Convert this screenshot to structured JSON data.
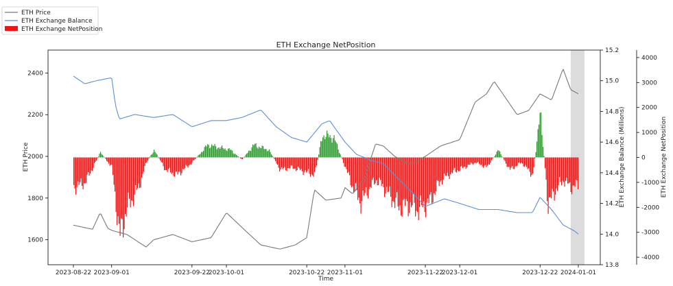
{
  "chart_data": {
    "type": "line",
    "title": "ETH Exchange NetPosition",
    "xlabel": "Time",
    "x_ticks": [
      "2023-08-22",
      "2023-09-01",
      "2023-09-22",
      "2023-10-01",
      "2023-10-22",
      "2023-11-01",
      "2023-11-22",
      "2023-12-01",
      "2023-12-22",
      "2024-01-01"
    ],
    "x_range": [
      "2023-08-22",
      "2024-01-01"
    ],
    "axes": {
      "left": {
        "label": "ETH Price",
        "ylim": [
          1480,
          2510
        ],
        "ticks": [
          1600,
          1800,
          2000,
          2200,
          2400
        ]
      },
      "right1": {
        "label": "ETH Exchange Balance (Millions)",
        "ylim": [
          13.8,
          15.2
        ],
        "ticks": [
          "13.8",
          "14.0",
          "14.2",
          "14.4",
          "14.6",
          "14.8",
          "15.0",
          "15.2"
        ]
      },
      "right2": {
        "label": "ETH Exchange NetPosition",
        "ylim": [
          -4300,
          4300
        ],
        "ticks": [
          -4000,
          -3000,
          -2000,
          -1000,
          0,
          1000,
          2000,
          3000,
          4000
        ]
      }
    },
    "legend": {
      "position": "top-left",
      "entries": [
        "ETH Price",
        "ETH Exchange Balance",
        "ETH Exchange NetPosition"
      ]
    },
    "highlight_band": [
      "2023-12-30",
      "2024-01-01"
    ],
    "colors": {
      "price": "#777777",
      "balance": "#5b8fd6",
      "net_positive": "#2a9a2a",
      "net_negative": "#f01414",
      "band": "#dcdcdc"
    },
    "series": [
      {
        "name": "ETH Price",
        "axis": "left",
        "x": [
          "2023-08-22",
          "2023-08-27",
          "2023-08-29",
          "2023-08-31",
          "2023-09-01",
          "2023-09-05",
          "2023-09-10",
          "2023-09-12",
          "2023-09-17",
          "2023-09-22",
          "2023-09-27",
          "2023-10-01",
          "2023-10-05",
          "2023-10-10",
          "2023-10-15",
          "2023-10-19",
          "2023-10-22",
          "2023-10-24",
          "2023-10-27",
          "2023-10-31",
          "2023-11-01",
          "2023-11-03",
          "2023-11-06",
          "2023-11-09",
          "2023-11-11",
          "2023-11-14",
          "2023-11-18",
          "2023-11-22",
          "2023-11-26",
          "2023-12-01",
          "2023-12-05",
          "2023-12-08",
          "2023-12-10",
          "2023-12-13",
          "2023-12-16",
          "2023-12-19",
          "2023-12-22",
          "2023-12-25",
          "2023-12-28",
          "2023-12-30",
          "2024-01-01"
        ],
        "values": [
          1670,
          1650,
          1730,
          1655,
          1645,
          1625,
          1565,
          1600,
          1625,
          1590,
          1610,
          1730,
          1660,
          1575,
          1555,
          1575,
          1610,
          1840,
          1790,
          1800,
          1850,
          1820,
          1890,
          2060,
          2050,
          2000,
          1960,
          2000,
          2050,
          2080,
          2260,
          2300,
          2360,
          2280,
          2200,
          2220,
          2300,
          2270,
          2420,
          2320,
          2300
        ]
      },
      {
        "name": "ETH Exchange Balance",
        "axis": "right1",
        "x": [
          "2023-08-22",
          "2023-08-25",
          "2023-08-28",
          "2023-09-01",
          "2023-09-02",
          "2023-09-03",
          "2023-09-07",
          "2023-09-12",
          "2023-09-17",
          "2023-09-22",
          "2023-09-27",
          "2023-10-01",
          "2023-10-05",
          "2023-10-10",
          "2023-10-14",
          "2023-10-18",
          "2023-10-22",
          "2023-10-26",
          "2023-10-28",
          "2023-11-01",
          "2023-11-04",
          "2023-11-08",
          "2023-11-11",
          "2023-11-15",
          "2023-11-19",
          "2023-11-22",
          "2023-11-27",
          "2023-12-01",
          "2023-12-06",
          "2023-12-11",
          "2023-12-16",
          "2023-12-20",
          "2023-12-22",
          "2023-12-25",
          "2023-12-28",
          "2023-12-31",
          "2024-01-01"
        ],
        "values": [
          15.03,
          14.98,
          15.0,
          15.02,
          14.84,
          14.75,
          14.78,
          14.76,
          14.78,
          14.7,
          14.74,
          14.74,
          14.76,
          14.81,
          14.7,
          14.63,
          14.6,
          14.72,
          14.74,
          14.6,
          14.52,
          14.48,
          14.46,
          14.36,
          14.26,
          14.18,
          14.23,
          14.2,
          14.16,
          14.16,
          14.14,
          14.14,
          14.24,
          14.16,
          14.06,
          14.02,
          14.0
        ]
      },
      {
        "name": "ETH Exchange NetPosition",
        "axis": "right2",
        "x": [
          "2023-08-22",
          "2023-08-25",
          "2023-08-29",
          "2023-09-01",
          "2023-09-03",
          "2023-09-05",
          "2023-09-08",
          "2023-09-10",
          "2023-09-12",
          "2023-09-15",
          "2023-09-18",
          "2023-09-22",
          "2023-09-26",
          "2023-09-29",
          "2023-10-02",
          "2023-10-05",
          "2023-10-08",
          "2023-10-12",
          "2023-10-15",
          "2023-10-18",
          "2023-10-22",
          "2023-10-24",
          "2023-10-26",
          "2023-10-29",
          "2023-11-01",
          "2023-11-03",
          "2023-11-05",
          "2023-11-07",
          "2023-11-09",
          "2023-11-11",
          "2023-11-13",
          "2023-11-15",
          "2023-11-18",
          "2023-11-20",
          "2023-11-23",
          "2023-11-26",
          "2023-11-29",
          "2023-12-02",
          "2023-12-05",
          "2023-12-08",
          "2023-12-11",
          "2023-12-14",
          "2023-12-17",
          "2023-12-20",
          "2023-12-22",
          "2023-12-24",
          "2023-12-26",
          "2023-12-28",
          "2023-12-30",
          "2024-01-01"
        ],
        "values": [
          -1200,
          -1000,
          200,
          -400,
          -3200,
          -2000,
          -1200,
          -200,
          300,
          -500,
          -700,
          -200,
          500,
          400,
          300,
          -100,
          500,
          300,
          -500,
          -400,
          -600,
          -700,
          900,
          800,
          -400,
          -1200,
          -1800,
          -1300,
          -900,
          -1200,
          -1600,
          -2000,
          -1900,
          -2100,
          -1800,
          -900,
          -600,
          -400,
          -200,
          -400,
          300,
          -500,
          -200,
          -700,
          1800,
          -1900,
          -1300,
          -900,
          -1200,
          -1100
        ]
      }
    ]
  }
}
